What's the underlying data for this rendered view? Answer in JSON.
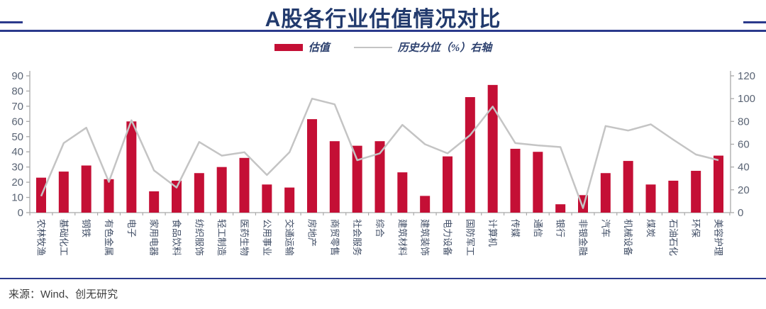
{
  "header": {
    "title": "A股各行业估值情况对比"
  },
  "legend": [
    {
      "label": "估值",
      "swatch": "bar",
      "color": "#c40f35"
    },
    {
      "label": "历史分位（%）右轴",
      "swatch": "line",
      "color": "#c4c4c4"
    }
  ],
  "chart_data": {
    "type": "bar",
    "title": "A股各行业估值情况对比",
    "categories": [
      "农林牧渔",
      "基础化工",
      "钢铁",
      "有色金属",
      "电子",
      "家用电器",
      "食品饮料",
      "纺织服饰",
      "轻工制造",
      "医药生物",
      "公用事业",
      "交通运输",
      "房地产",
      "商贸零售",
      "社会服务",
      "综合",
      "建筑材料",
      "建筑装饰",
      "电力设备",
      "国防军工",
      "计算机",
      "传媒",
      "通信",
      "银行",
      "非银金融",
      "汽车",
      "机械设备",
      "煤炭",
      "石油石化",
      "环保",
      "美容护理"
    ],
    "series": [
      {
        "name": "估值",
        "type": "bar",
        "axis": "left",
        "color": "#c40f35",
        "values": [
          23,
          27,
          31,
          22,
          60,
          14,
          21,
          26,
          30,
          36,
          18.5,
          16.5,
          61.5,
          47,
          44,
          47,
          26.5,
          11,
          37,
          76,
          84,
          42,
          40,
          5.5,
          11.5,
          26,
          34,
          18.5,
          21,
          27.5,
          37.5
        ]
      },
      {
        "name": "历史分位（%）右轴",
        "type": "line",
        "axis": "right",
        "color": "#c4c4c4",
        "values": [
          14.5,
          61,
          74.5,
          27,
          81,
          37,
          22,
          62,
          50,
          53,
          33,
          53,
          100,
          95,
          46,
          52,
          77,
          60,
          52,
          68,
          93,
          61,
          59,
          57.5,
          4,
          76,
          72,
          77.5,
          64,
          51,
          46
        ]
      }
    ],
    "left_axis": {
      "min": 0,
      "max": 90,
      "step": 10
    },
    "right_axis": {
      "min": 0,
      "max": 120,
      "step": 20
    },
    "grid": false,
    "legend_position": "top"
  },
  "footer": {
    "source": "来源：Wind、创无研究"
  },
  "colors": {
    "bar_red": "#c40f35",
    "line_gray": "#c4c4c4",
    "navy": "#2b3a8c",
    "axis_line": "#a9a9a9",
    "y_label": "#5a6474",
    "x_label": "#414e66"
  }
}
